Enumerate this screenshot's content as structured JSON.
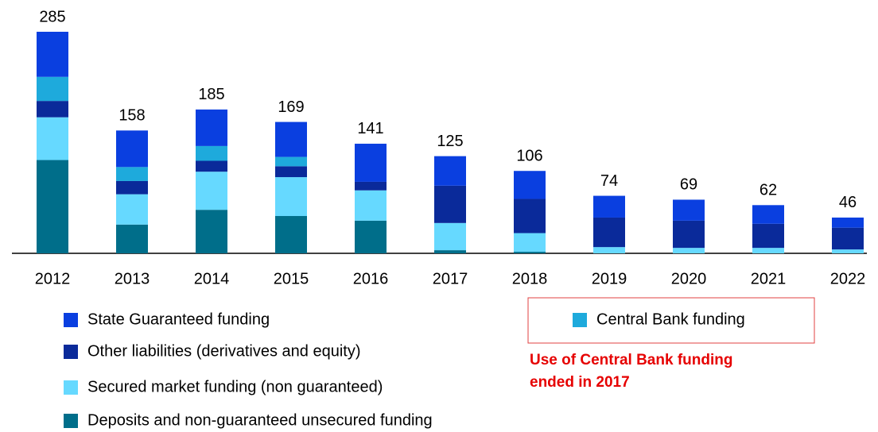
{
  "chart_data": {
    "type": "stacked_bar",
    "categories": [
      "2012",
      "2013",
      "2014",
      "2015",
      "2016",
      "2017",
      "2018",
      "2019",
      "2020",
      "2021",
      "2022"
    ],
    "totals": [
      285,
      158,
      185,
      169,
      141,
      125,
      106,
      74,
      69,
      62,
      46
    ],
    "series": [
      {
        "name": "Deposits and non-guaranteed unsecured funding",
        "color": "#006e8a",
        "values": [
          120,
          37,
          56,
          48,
          42,
          4,
          2,
          0,
          0,
          0,
          0
        ]
      },
      {
        "name": "Secured market funding (non guaranteed)",
        "color": "#66d9ff",
        "values": [
          55,
          39,
          49,
          50,
          39,
          35,
          24,
          8,
          7,
          7,
          5
        ]
      },
      {
        "name": "Other liabilities (derivatives and equity)",
        "color": "#0a2a9a",
        "values": [
          21,
          17,
          14,
          14,
          11,
          48,
          44,
          38,
          35,
          31,
          28
        ]
      },
      {
        "name": "Central Bank funding",
        "color": "#1eaadc",
        "values": [
          31,
          18,
          19,
          12,
          0,
          0,
          0,
          0,
          0,
          0,
          0
        ]
      },
      {
        "name": "State Guaranteed funding",
        "color": "#0a3fe0",
        "values": [
          58,
          47,
          47,
          45,
          49,
          38,
          36,
          28,
          27,
          24,
          13
        ]
      }
    ],
    "annotation": [
      "Use of Central Bank funding",
      "ended in 2017"
    ]
  }
}
